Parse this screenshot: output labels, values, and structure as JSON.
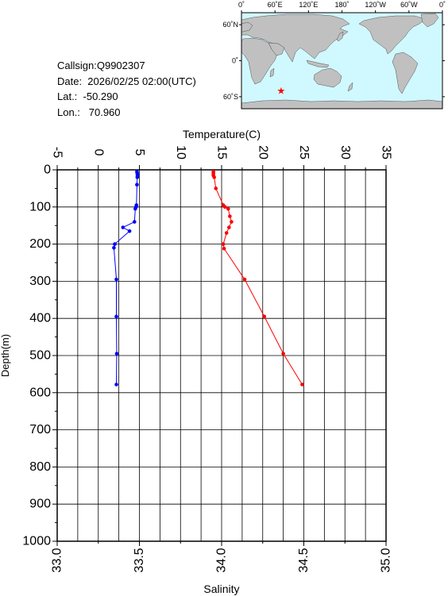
{
  "info": {
    "callsign": "Callsign:Q9902307",
    "date": "Date:  2026/02/25 02:00(UTC)",
    "lat": "Lat.:  -50.290",
    "lon": "Lon.:   70.960"
  },
  "map": {
    "lon_labels": [
      "0˚",
      "60˚E",
      "120˚E",
      "180˚",
      "120˚W",
      "60˚W",
      "0˚"
    ],
    "lat_labels": [
      "60˚N",
      "0˚",
      "60˚S"
    ],
    "station": {
      "lon": 70.96,
      "lat": -50.29
    },
    "ocean_color": "#d0f8ff",
    "land_color": "#c0c0c0",
    "marker_color": "#ff0000"
  },
  "chart_data": {
    "type": "line",
    "ylabel": "Depth(m)",
    "top_xlabel": "Temperature(C)",
    "bottom_xlabel": "Salinity",
    "depth_range": [
      0,
      1000
    ],
    "depth_ticks": [
      "0",
      "100",
      "200",
      "300",
      "400",
      "500",
      "600",
      "700",
      "800",
      "900",
      "1000"
    ],
    "temperature_range": [
      -5,
      35
    ],
    "temperature_ticks": [
      "-5",
      "0",
      "5",
      "10",
      "15",
      "20",
      "25",
      "30",
      "35"
    ],
    "salinity_range": [
      33.0,
      35.0
    ],
    "salinity_ticks": [
      "33.0",
      "33.5",
      "34.0",
      "34.5",
      "35.0"
    ],
    "grid": true,
    "series": [
      {
        "axis": "salinity",
        "color": "#0000ff",
        "depth": [
          5,
          10,
          15,
          20,
          40,
          95,
          100,
          105,
          140,
          155,
          165,
          200,
          210,
          295,
          395,
          495,
          578
        ],
        "values": [
          33.485,
          33.487,
          33.488,
          33.487,
          33.485,
          33.482,
          33.48,
          33.475,
          33.47,
          33.4,
          33.44,
          33.35,
          33.345,
          33.36,
          33.36,
          33.362,
          33.36
        ]
      },
      {
        "axis": "temperature",
        "color": "#ff0000",
        "depth": [
          5,
          10,
          15,
          20,
          50,
          95,
          100,
          105,
          125,
          140,
          155,
          170,
          200,
          212,
          295,
          395,
          495,
          578
        ],
        "values": [
          14.0,
          14.0,
          14.0,
          14.1,
          14.3,
          15.2,
          15.4,
          15.8,
          16.0,
          16.2,
          15.9,
          15.6,
          15.2,
          15.3,
          17.8,
          20.2,
          22.5,
          24.8
        ]
      }
    ]
  }
}
